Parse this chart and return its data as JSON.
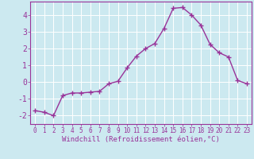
{
  "x": [
    0,
    1,
    2,
    3,
    4,
    5,
    6,
    7,
    8,
    9,
    10,
    11,
    12,
    13,
    14,
    15,
    16,
    17,
    18,
    19,
    20,
    21,
    22,
    23
  ],
  "y": [
    -1.7,
    -1.8,
    -2.0,
    -0.8,
    -0.65,
    -0.65,
    -0.6,
    -0.55,
    -0.1,
    0.05,
    0.85,
    1.55,
    2.0,
    2.3,
    3.2,
    4.4,
    4.45,
    4.0,
    3.4,
    2.25,
    1.75,
    1.5,
    0.1,
    -0.1
  ],
  "line_color": "#993399",
  "marker": "+",
  "marker_size": 4,
  "marker_lw": 1.0,
  "line_width": 1.0,
  "bg_color": "#cce9f0",
  "grid_color": "#ffffff",
  "xlabel": "Windchill (Refroidissement éolien,°C)",
  "xlabel_color": "#993399",
  "tick_color": "#993399",
  "spine_color": "#993399",
  "yticks": [
    -2,
    -1,
    0,
    1,
    2,
    3,
    4
  ],
  "xticks": [
    0,
    1,
    2,
    3,
    4,
    5,
    6,
    7,
    8,
    9,
    10,
    11,
    12,
    13,
    14,
    15,
    16,
    17,
    18,
    19,
    20,
    21,
    22,
    23
  ],
  "ylim": [
    -2.5,
    4.8
  ],
  "xlim": [
    -0.5,
    23.5
  ],
  "ytick_fontsize": 7,
  "xtick_fontsize": 5.5,
  "xlabel_fontsize": 6.5
}
